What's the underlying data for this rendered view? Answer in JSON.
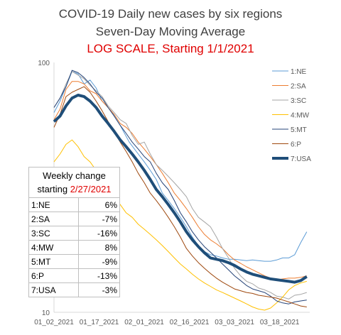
{
  "chart_data": {
    "type": "line",
    "title": "COVID-19 Daily new cases by six regions",
    "subtitle": "Seven-Day Moving Average",
    "note": "LOG SCALE, Starting 1/1/2021",
    "y_scale": "log",
    "ylim": [
      10,
      100
    ],
    "y_ticks": [
      "100",
      "10"
    ],
    "x_ticks": [
      "01_02_2021",
      "01_17_2021",
      "02_01_2021",
      "02_16_2021",
      "03_03_2021",
      "03_18_2021"
    ],
    "x_tick_days": [
      1,
      16,
      31,
      46,
      61,
      76
    ],
    "x_range_days": [
      1,
      86
    ],
    "legend_position": "right",
    "series": [
      {
        "name": "1:NE",
        "color": "#5b9bd5",
        "width": 1,
        "points": [
          [
            1,
            63
          ],
          [
            3,
            70
          ],
          [
            5,
            80
          ],
          [
            7,
            92
          ],
          [
            9,
            90
          ],
          [
            11,
            82
          ],
          [
            13,
            85
          ],
          [
            15,
            79
          ],
          [
            17,
            70
          ],
          [
            20,
            64
          ],
          [
            23,
            56
          ],
          [
            26,
            48
          ],
          [
            29,
            43
          ],
          [
            31,
            40
          ],
          [
            33,
            37
          ],
          [
            35,
            34
          ],
          [
            37,
            30
          ],
          [
            39,
            28
          ],
          [
            41,
            26
          ],
          [
            43,
            24
          ],
          [
            45,
            22
          ],
          [
            47,
            20
          ],
          [
            49,
            18.5
          ],
          [
            51,
            17.5
          ],
          [
            53,
            17
          ],
          [
            55,
            16.8
          ],
          [
            57,
            16.5
          ],
          [
            59,
            16.3
          ],
          [
            61,
            16.3
          ],
          [
            63,
            16.2
          ],
          [
            65,
            16.1
          ],
          [
            67,
            16.2
          ],
          [
            69,
            16.1
          ],
          [
            71,
            16
          ],
          [
            73,
            16
          ],
          [
            75,
            16.2
          ],
          [
            77,
            16.5
          ],
          [
            79,
            16.5
          ],
          [
            81,
            17
          ],
          [
            83,
            19
          ],
          [
            85,
            21
          ]
        ]
      },
      {
        "name": "2:SA",
        "color": "#ed7d31",
        "width": 1,
        "points": [
          [
            1,
            59
          ],
          [
            3,
            65
          ],
          [
            5,
            78
          ],
          [
            7,
            84
          ],
          [
            9,
            84
          ],
          [
            11,
            82
          ],
          [
            13,
            77
          ],
          [
            15,
            75
          ],
          [
            17,
            70
          ],
          [
            19,
            66
          ],
          [
            21,
            62
          ],
          [
            23,
            57
          ],
          [
            25,
            55
          ],
          [
            27,
            52
          ],
          [
            29,
            48
          ],
          [
            31,
            45
          ],
          [
            33,
            42
          ],
          [
            35,
            39
          ],
          [
            37,
            36
          ],
          [
            39,
            33
          ],
          [
            41,
            30
          ],
          [
            43,
            28
          ],
          [
            45,
            26
          ],
          [
            47,
            24
          ],
          [
            49,
            22
          ],
          [
            51,
            20.5
          ],
          [
            53,
            19.5
          ],
          [
            55,
            18.8
          ],
          [
            57,
            18
          ],
          [
            59,
            17
          ],
          [
            61,
            16.2
          ],
          [
            63,
            15.7
          ],
          [
            65,
            15.2
          ],
          [
            67,
            14.8
          ],
          [
            69,
            14.4
          ],
          [
            71,
            14
          ],
          [
            73,
            13.7
          ],
          [
            75,
            13.5
          ],
          [
            77,
            13.6
          ],
          [
            79,
            13.7
          ],
          [
            81,
            13.7
          ],
          [
            83,
            13.8
          ],
          [
            85,
            14
          ]
        ]
      },
      {
        "name": "3:SC",
        "color": "#a5a5a5",
        "width": 1,
        "points": [
          [
            1,
            66
          ],
          [
            3,
            72
          ],
          [
            5,
            82
          ],
          [
            7,
            92
          ],
          [
            9,
            89
          ],
          [
            11,
            86
          ],
          [
            13,
            81
          ],
          [
            15,
            77
          ],
          [
            17,
            73
          ],
          [
            19,
            67
          ],
          [
            21,
            63
          ],
          [
            23,
            59
          ],
          [
            25,
            57
          ],
          [
            27,
            51
          ],
          [
            29,
            47
          ],
          [
            31,
            48
          ],
          [
            33,
            43
          ],
          [
            35,
            39
          ],
          [
            37,
            37
          ],
          [
            39,
            35
          ],
          [
            41,
            33
          ],
          [
            43,
            31
          ],
          [
            45,
            29
          ],
          [
            47,
            26
          ],
          [
            49,
            24
          ],
          [
            51,
            23
          ],
          [
            53,
            22
          ],
          [
            55,
            20
          ],
          [
            57,
            18
          ],
          [
            59,
            16.5
          ],
          [
            61,
            15
          ],
          [
            63,
            14
          ],
          [
            65,
            13.3
          ],
          [
            67,
            13
          ],
          [
            69,
            12.5
          ],
          [
            71,
            12.3
          ],
          [
            73,
            12
          ],
          [
            75,
            11.6
          ],
          [
            77,
            11.5
          ],
          [
            79,
            11.3
          ],
          [
            81,
            11.7
          ],
          [
            83,
            11.8
          ],
          [
            85,
            12
          ]
        ]
      },
      {
        "name": "4:MW",
        "color": "#ffc000",
        "width": 1,
        "points": [
          [
            1,
            40
          ],
          [
            3,
            43
          ],
          [
            5,
            47
          ],
          [
            7,
            49
          ],
          [
            9,
            46
          ],
          [
            11,
            42
          ],
          [
            13,
            40
          ],
          [
            15,
            37
          ],
          [
            17,
            34
          ],
          [
            19,
            31
          ],
          [
            21,
            29
          ],
          [
            23,
            27
          ],
          [
            25,
            25
          ],
          [
            27,
            24
          ],
          [
            29,
            22.5
          ],
          [
            31,
            21.5
          ],
          [
            33,
            20.5
          ],
          [
            35,
            19.5
          ],
          [
            37,
            18.5
          ],
          [
            39,
            17.5
          ],
          [
            41,
            16.5
          ],
          [
            43,
            15.6
          ],
          [
            45,
            14.9
          ],
          [
            47,
            14.2
          ],
          [
            49,
            13.6
          ],
          [
            51,
            13.1
          ],
          [
            53,
            12.7
          ],
          [
            55,
            12.3
          ],
          [
            57,
            12
          ],
          [
            59,
            11.7
          ],
          [
            61,
            11.4
          ],
          [
            63,
            11.1
          ],
          [
            65,
            10.8
          ],
          [
            67,
            10.5
          ],
          [
            69,
            10.3
          ],
          [
            71,
            10.2
          ],
          [
            73,
            10.4
          ],
          [
            75,
            10.9
          ],
          [
            77,
            11.5
          ],
          [
            79,
            12.3
          ],
          [
            81,
            12.8
          ],
          [
            83,
            13.1
          ],
          [
            85,
            13.3
          ]
        ]
      },
      {
        "name": "5:MT",
        "color": "#264478",
        "width": 1,
        "points": [
          [
            1,
            66
          ],
          [
            3,
            72
          ],
          [
            5,
            80
          ],
          [
            7,
            93
          ],
          [
            9,
            91
          ],
          [
            11,
            87
          ],
          [
            13,
            82
          ],
          [
            15,
            76
          ],
          [
            17,
            72
          ],
          [
            19,
            66
          ],
          [
            21,
            61
          ],
          [
            23,
            56
          ],
          [
            25,
            52
          ],
          [
            27,
            48
          ],
          [
            29,
            45
          ],
          [
            31,
            42
          ],
          [
            33,
            40
          ],
          [
            35,
            36
          ],
          [
            37,
            33
          ],
          [
            39,
            31
          ],
          [
            41,
            28
          ],
          [
            43,
            25
          ],
          [
            45,
            23
          ],
          [
            47,
            21
          ],
          [
            49,
            19.5
          ],
          [
            51,
            18.3
          ],
          [
            53,
            17.4
          ],
          [
            55,
            16.5
          ],
          [
            57,
            15.6
          ],
          [
            59,
            14.8
          ],
          [
            61,
            14
          ],
          [
            63,
            13.4
          ],
          [
            65,
            12.8
          ],
          [
            67,
            12.4
          ],
          [
            69,
            12.2
          ],
          [
            71,
            12
          ],
          [
            73,
            11.6
          ],
          [
            75,
            11.1
          ],
          [
            77,
            10.9
          ],
          [
            79,
            10.8
          ],
          [
            81,
            11
          ],
          [
            83,
            11.1
          ],
          [
            85,
            11.2
          ]
        ]
      },
      {
        "name": "6:P",
        "color": "#9e480e",
        "width": 1,
        "points": [
          [
            1,
            55
          ],
          [
            3,
            62
          ],
          [
            5,
            73
          ],
          [
            7,
            76
          ],
          [
            9,
            78
          ],
          [
            11,
            80
          ],
          [
            13,
            76
          ],
          [
            15,
            70
          ],
          [
            17,
            64
          ],
          [
            19,
            58
          ],
          [
            21,
            53
          ],
          [
            23,
            48
          ],
          [
            25,
            44
          ],
          [
            27,
            40
          ],
          [
            29,
            36
          ],
          [
            31,
            33
          ],
          [
            33,
            30
          ],
          [
            35,
            28
          ],
          [
            37,
            26
          ],
          [
            39,
            24
          ],
          [
            41,
            22
          ],
          [
            43,
            20
          ],
          [
            45,
            18
          ],
          [
            47,
            16.8
          ],
          [
            49,
            15.8
          ],
          [
            51,
            15
          ],
          [
            53,
            14.3
          ],
          [
            55,
            13.7
          ],
          [
            57,
            13.2
          ],
          [
            59,
            12.8
          ],
          [
            61,
            12.4
          ],
          [
            63,
            12.2
          ],
          [
            65,
            12
          ],
          [
            67,
            11.9
          ],
          [
            69,
            11.7
          ],
          [
            71,
            11.6
          ],
          [
            73,
            11.5
          ],
          [
            75,
            11.4
          ],
          [
            77,
            11.2
          ],
          [
            79,
            11
          ],
          [
            81,
            10.8
          ],
          [
            83,
            10.6
          ],
          [
            85,
            10.5
          ]
        ]
      },
      {
        "name": "7:USA",
        "color": "#1f4e79",
        "width": 4,
        "points": [
          [
            1,
            58
          ],
          [
            3,
            61
          ],
          [
            5,
            67
          ],
          [
            7,
            72
          ],
          [
            9,
            74
          ],
          [
            11,
            73
          ],
          [
            13,
            70
          ],
          [
            15,
            66
          ],
          [
            17,
            61
          ],
          [
            19,
            57
          ],
          [
            21,
            53
          ],
          [
            23,
            49
          ],
          [
            25,
            46
          ],
          [
            27,
            43
          ],
          [
            29,
            40
          ],
          [
            31,
            37
          ],
          [
            33,
            34
          ],
          [
            35,
            31
          ],
          [
            37,
            29
          ],
          [
            39,
            27
          ],
          [
            41,
            25
          ],
          [
            43,
            23
          ],
          [
            45,
            21
          ],
          [
            47,
            19.5
          ],
          [
            49,
            18.3
          ],
          [
            51,
            17.3
          ],
          [
            53,
            16.5
          ],
          [
            55,
            16.3
          ],
          [
            57,
            16.1
          ],
          [
            59,
            15.8
          ],
          [
            61,
            15.4
          ],
          [
            63,
            14.9
          ],
          [
            65,
            14.5
          ],
          [
            67,
            14.2
          ],
          [
            69,
            14.0
          ],
          [
            71,
            13.8
          ],
          [
            73,
            13.6
          ],
          [
            75,
            13.5
          ],
          [
            77,
            13.4
          ],
          [
            79,
            13.3
          ],
          [
            81,
            13.2
          ],
          [
            83,
            13.4
          ],
          [
            85,
            13.9
          ]
        ]
      }
    ]
  },
  "table": {
    "header_line1": "Weekly change",
    "header_line2_prefix": "starting ",
    "header_line2_date": "2/27/2021",
    "rows": [
      {
        "region": "1:NE",
        "change": "6%"
      },
      {
        "region": "2:SA",
        "change": "-7%"
      },
      {
        "region": "3:SC",
        "change": "-16%"
      },
      {
        "region": "4:MW",
        "change": "8%"
      },
      {
        "region": "5:MT",
        "change": "-9%"
      },
      {
        "region": "6:P",
        "change": "-13%"
      },
      {
        "region": "7:USA",
        "change": "-3%"
      }
    ]
  }
}
